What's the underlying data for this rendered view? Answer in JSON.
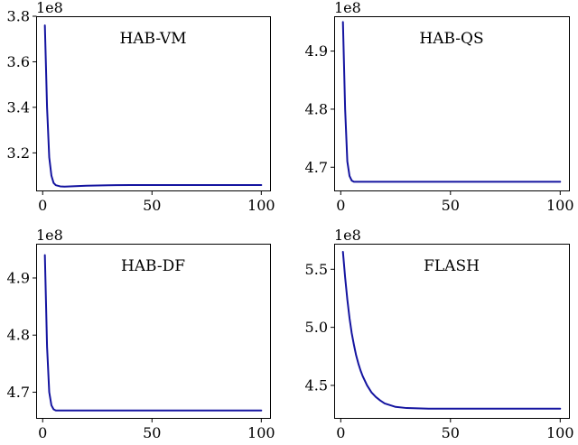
{
  "chart_data": [
    {
      "type": "line",
      "title": "HAB-VM",
      "y_multiplier": "1e8",
      "xlim": [
        -3,
        104
      ],
      "ylim": [
        3.035,
        3.8
      ],
      "xticks": [
        0,
        50,
        100
      ],
      "xtick_labels": [
        "0",
        "50",
        "100"
      ],
      "yticks": [
        3.2,
        3.4,
        3.6,
        3.8
      ],
      "ytick_labels": [
        "3.2",
        "3.4",
        "3.6",
        "3.8"
      ],
      "color": "#1414a0",
      "grid": false,
      "series": [
        {
          "x": [
            1,
            2,
            3,
            4,
            5,
            6,
            8,
            10,
            15,
            20,
            30,
            40,
            50,
            60,
            70,
            80,
            90,
            100
          ],
          "y": [
            3.76,
            3.4,
            3.18,
            3.1,
            3.068,
            3.058,
            3.053,
            3.052,
            3.054,
            3.056,
            3.058,
            3.059,
            3.059,
            3.059,
            3.059,
            3.059,
            3.059,
            3.059
          ]
        }
      ]
    },
    {
      "type": "line",
      "title": "HAB-QS",
      "y_multiplier": "1e8",
      "xlim": [
        -3,
        104
      ],
      "ylim": [
        4.66,
        4.96
      ],
      "xticks": [
        0,
        50,
        100
      ],
      "xtick_labels": [
        "0",
        "50",
        "100"
      ],
      "yticks": [
        4.7,
        4.8,
        4.9
      ],
      "ytick_labels": [
        "4.7",
        "4.8",
        "4.9"
      ],
      "color": "#1414a0",
      "grid": false,
      "series": [
        {
          "x": [
            1,
            2,
            3,
            4,
            5,
            6,
            8,
            10,
            20,
            40,
            60,
            80,
            100
          ],
          "y": [
            4.95,
            4.8,
            4.71,
            4.685,
            4.677,
            4.675,
            4.675,
            4.675,
            4.675,
            4.675,
            4.675,
            4.675,
            4.675
          ]
        }
      ]
    },
    {
      "type": "line",
      "title": "HAB-DF",
      "y_multiplier": "1e8",
      "xlim": [
        -3,
        104
      ],
      "ylim": [
        4.655,
        4.96
      ],
      "xticks": [
        0,
        50,
        100
      ],
      "xtick_labels": [
        "0",
        "50",
        "100"
      ],
      "yticks": [
        4.7,
        4.8,
        4.9
      ],
      "ytick_labels": [
        "4.7",
        "4.8",
        "4.9"
      ],
      "color": "#1414a0",
      "grid": false,
      "series": [
        {
          "x": [
            1,
            2,
            3,
            4,
            5,
            6,
            8,
            10,
            20,
            40,
            60,
            80,
            100
          ],
          "y": [
            4.94,
            4.78,
            4.7,
            4.677,
            4.67,
            4.668,
            4.668,
            4.668,
            4.668,
            4.668,
            4.668,
            4.668,
            4.668
          ]
        }
      ]
    },
    {
      "type": "line",
      "title": "FLASH",
      "y_multiplier": "1e8",
      "xlim": [
        -3,
        104
      ],
      "ylim": [
        4.22,
        5.72
      ],
      "xticks": [
        0,
        50,
        100
      ],
      "xtick_labels": [
        "0",
        "50",
        "100"
      ],
      "yticks": [
        4.5,
        5.0,
        5.5
      ],
      "ytick_labels": [
        "4.5",
        "5.0",
        "5.5"
      ],
      "color": "#1414a0",
      "grid": false,
      "series": [
        {
          "x": [
            1,
            2,
            3,
            4,
            5,
            6,
            7,
            8,
            9,
            10,
            12,
            14,
            16,
            18,
            20,
            25,
            30,
            40,
            50,
            60,
            70,
            80,
            90,
            100
          ],
          "y": [
            5.65,
            5.43,
            5.24,
            5.08,
            4.95,
            4.85,
            4.76,
            4.69,
            4.63,
            4.58,
            4.5,
            4.44,
            4.4,
            4.37,
            4.345,
            4.315,
            4.305,
            4.3,
            4.3,
            4.3,
            4.3,
            4.3,
            4.3,
            4.3
          ]
        }
      ]
    }
  ]
}
